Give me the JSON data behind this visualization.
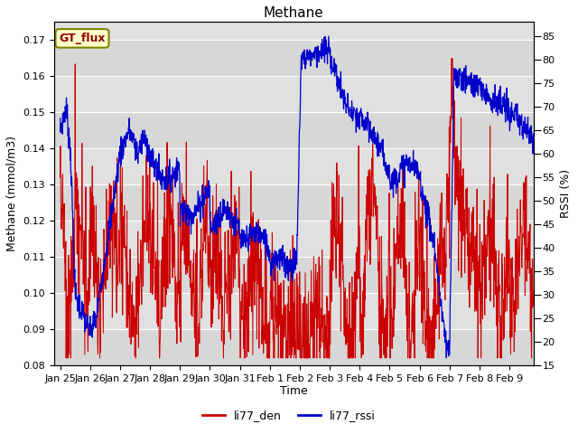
{
  "title": "Methane",
  "xlabel": "Time",
  "ylabel_left": "Methane (mmol/m3)",
  "ylabel_right": "RSSI (%)",
  "annotation": "GT_flux",
  "ylim_left": [
    0.08,
    0.175
  ],
  "ylim_right": [
    15,
    88
  ],
  "yticks_left": [
    0.08,
    0.09,
    0.1,
    0.11,
    0.12,
    0.13,
    0.14,
    0.15,
    0.16,
    0.17
  ],
  "yticks_right": [
    15,
    20,
    25,
    30,
    35,
    40,
    45,
    50,
    55,
    60,
    65,
    70,
    75,
    80,
    85
  ],
  "color_den": "#cc0000",
  "color_rssi": "#0000cc",
  "bg_color": "#e0e0e0",
  "legend_label_den": "li77_den",
  "legend_label_rssi": "li77_rssi",
  "title_fontsize": 11,
  "axis_fontsize": 9,
  "tick_fontsize": 8,
  "day_labels": [
    "Jan 25",
    "Jan 26",
    "Jan 27",
    "Jan 28",
    "Jan 29",
    "Jan 30",
    "Jan 31",
    "Feb 1",
    "Feb 2",
    "Feb 3",
    "Feb 4",
    "Feb 5",
    "Feb 6",
    "Feb 7",
    "Feb 8",
    "Feb 9"
  ],
  "n_days": 16
}
